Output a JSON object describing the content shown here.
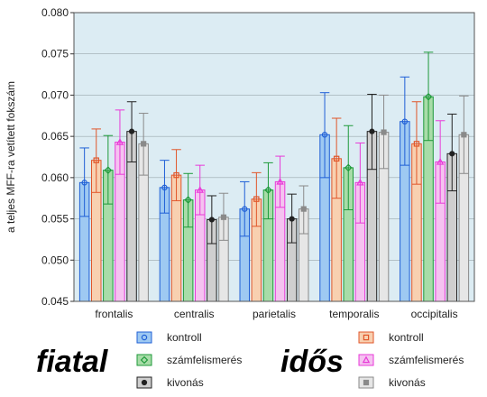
{
  "chart_data": {
    "type": "bar",
    "ylabel": "a teljes MFF-ra vetített fokszám",
    "xlabel": "",
    "ylim": [
      0.045,
      0.08
    ],
    "yticks": [
      0.045,
      0.05,
      0.055,
      0.06,
      0.065,
      0.07,
      0.075,
      0.08
    ],
    "ytick_labels": [
      "0.045",
      "0.050",
      "0.055",
      "0.060",
      "0.065",
      "0.070",
      "0.075",
      "0.080"
    ],
    "categories": [
      "frontalis",
      "centralis",
      "parietalis",
      "temporalis",
      "occipitalis"
    ],
    "series": [
      {
        "name": "kontroll",
        "group": "fiatal",
        "color": "#9ec9f2",
        "edge": "#1f5fd6",
        "values": [
          0.0594,
          0.0588,
          0.0562,
          0.0652,
          0.0668
        ],
        "err_low": [
          0.0553,
          0.0557,
          0.0529,
          0.06,
          0.0615
        ],
        "err_high": [
          0.0636,
          0.0621,
          0.0595,
          0.0703,
          0.0722
        ]
      },
      {
        "name": "kontroll",
        "group": "idős",
        "color": "#f8d0b0",
        "edge": "#e0562a",
        "values": [
          0.0621,
          0.0603,
          0.0574,
          0.0623,
          0.0641
        ],
        "err_low": [
          0.0582,
          0.0572,
          0.0541,
          0.0575,
          0.0592
        ],
        "err_high": [
          0.0659,
          0.0634,
          0.0606,
          0.0672,
          0.0692
        ]
      },
      {
        "name": "számfelismerés",
        "group": "fiatal",
        "color": "#a8dca8",
        "edge": "#1e9a3a",
        "values": [
          0.0609,
          0.0573,
          0.0585,
          0.0612,
          0.0698
        ],
        "err_low": [
          0.0568,
          0.054,
          0.055,
          0.0561,
          0.0645
        ],
        "err_high": [
          0.0651,
          0.0605,
          0.0618,
          0.0663,
          0.0752
        ]
      },
      {
        "name": "számfelismerés",
        "group": "idős",
        "color": "#f5c2f0",
        "edge": "#e83ad8",
        "values": [
          0.0643,
          0.0585,
          0.0595,
          0.0594,
          0.0619
        ],
        "err_low": [
          0.0604,
          0.0555,
          0.0564,
          0.0545,
          0.0569
        ],
        "err_high": [
          0.0682,
          0.0615,
          0.0626,
          0.0642,
          0.0669
        ]
      },
      {
        "name": "kivonás",
        "group": "fiatal",
        "color": "#cfcfcf",
        "edge": "#222222",
        "values": [
          0.0656,
          0.0549,
          0.055,
          0.0656,
          0.0629
        ],
        "err_low": [
          0.0619,
          0.052,
          0.0521,
          0.061,
          0.0584
        ],
        "err_high": [
          0.0692,
          0.0578,
          0.058,
          0.0701,
          0.0677
        ]
      },
      {
        "name": "kivonás",
        "group": "idős",
        "color": "#e6e6e6",
        "edge": "#8a8a8a",
        "values": [
          0.0641,
          0.0552,
          0.0562,
          0.0655,
          0.0652
        ],
        "err_low": [
          0.0603,
          0.0524,
          0.0532,
          0.0611,
          0.0605
        ],
        "err_high": [
          0.0678,
          0.0581,
          0.059,
          0.07,
          0.0699
        ]
      }
    ],
    "legend": {
      "placement": "bottom",
      "groups": [
        "fiatal",
        "idős"
      ],
      "entries": [
        "kontroll",
        "számfelismerés",
        "kivonás"
      ]
    },
    "background": "#dcecf3"
  }
}
